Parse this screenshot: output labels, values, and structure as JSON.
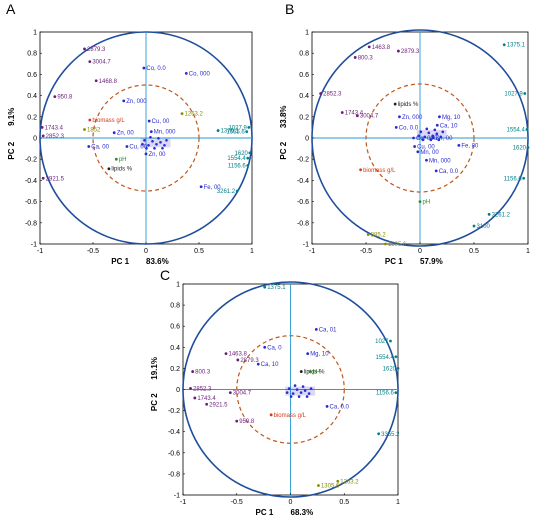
{
  "colors": {
    "outer_circle": "#1f4e9c",
    "inner_circle": "#c0561a",
    "axis_line": "#2a9ad6",
    "wavenumber": "#00808a",
    "wavenumber_purple": "#6a1e7a",
    "metal": "#2a2ad0",
    "biomass": "#d43a1a",
    "lipids": "#222222",
    "ph": "#2e8b2e",
    "olive": "#8a8a00"
  },
  "chart_data": [
    {
      "panel_label": "A",
      "type": "scatter",
      "xlabel": "PC 1",
      "xlabel_value": "83.6%",
      "ylabel": "PC 2",
      "ylabel_value": "9.1%",
      "xlim": [
        -1,
        1
      ],
      "ylim": [
        -1,
        1
      ],
      "x_ticks": [
        "-1",
        "-0.5",
        "0",
        "0.5",
        "1"
      ],
      "y_ticks": [
        "1",
        "0.8",
        "0.6",
        "0.4",
        "0.2",
        "0",
        "-0.2",
        "-0.4",
        "-0.6",
        "-0.8",
        "-1"
      ],
      "points": [
        {
          "label": "2879.3",
          "x": -0.58,
          "y": 0.84,
          "group": "wavenumber_purple"
        },
        {
          "label": "3004.7",
          "x": -0.53,
          "y": 0.72,
          "group": "wavenumber_purple"
        },
        {
          "label": "1468.8",
          "x": -0.47,
          "y": 0.54,
          "group": "wavenumber_purple"
        },
        {
          "label": "950.8",
          "x": -0.86,
          "y": 0.39,
          "group": "wavenumber_purple"
        },
        {
          "label": "1743.4",
          "x": -0.98,
          "y": 0.1,
          "group": "wavenumber_purple"
        },
        {
          "label": "2852.3",
          "x": -0.97,
          "y": 0.02,
          "group": "wavenumber_purple"
        },
        {
          "label": "2921.5",
          "x": -0.97,
          "y": -0.38,
          "group": "wavenumber_purple"
        },
        {
          "label": "biomass g/L",
          "x": -0.53,
          "y": 0.17,
          "group": "biomass"
        },
        {
          "label": "1852",
          "x": -0.58,
          "y": 0.08,
          "group": "olive"
        },
        {
          "label": "pH",
          "x": -0.28,
          "y": -0.2,
          "group": "ph"
        },
        {
          "label": "lipids %",
          "x": -0.35,
          "y": -0.29,
          "group": "lipids"
        },
        {
          "label": "Co, 0.0",
          "x": -0.02,
          "y": 0.66,
          "group": "metal"
        },
        {
          "label": "Co, 000",
          "x": 0.38,
          "y": 0.61,
          "group": "metal"
        },
        {
          "label": "Zn, 000",
          "x": -0.21,
          "y": 0.35,
          "group": "metal"
        },
        {
          "label": "Zn, 00",
          "x": -0.3,
          "y": 0.05,
          "group": "metal"
        },
        {
          "label": "Ca, 00",
          "x": -0.54,
          "y": -0.08,
          "group": "metal"
        },
        {
          "label": "Cu, 00",
          "x": -0.18,
          "y": -0.08,
          "group": "metal"
        },
        {
          "label": "Zn, 00",
          "x": 0.0,
          "y": -0.15,
          "group": "metal"
        },
        {
          "label": "Mn, 000",
          "x": 0.05,
          "y": 0.06,
          "group": "metal"
        },
        {
          "label": "Cu, 00",
          "x": 0.03,
          "y": 0.16,
          "group": "metal"
        },
        {
          "label": "Fe, 00",
          "x": 0.52,
          "y": -0.46,
          "group": "metal"
        },
        {
          "label": "1263.2",
          "x": 0.34,
          "y": 0.23,
          "group": "olive"
        },
        {
          "label": "1375.1",
          "x": 0.68,
          "y": 0.07,
          "group": "wavenumber"
        },
        {
          "label": "1027.9",
          "x": 0.97,
          "y": 0.1,
          "group": "wavenumber"
        },
        {
          "label": "1655.6",
          "x": 0.95,
          "y": 0.06,
          "group": "wavenumber"
        },
        {
          "label": "1620",
          "x": 0.98,
          "y": -0.14,
          "group": "wavenumber"
        },
        {
          "label": "1554.4",
          "x": 0.96,
          "y": -0.19,
          "group": "wavenumber"
        },
        {
          "label": "1156.6",
          "x": 0.96,
          "y": -0.26,
          "group": "wavenumber"
        },
        {
          "label": "3261.2",
          "x": 0.86,
          "y": -0.5,
          "group": "wavenumber"
        }
      ],
      "cluster": {
        "x": 0.08,
        "y": -0.05
      }
    },
    {
      "panel_label": "B",
      "type": "scatter",
      "xlabel": "PC 1",
      "xlabel_value": "57.9%",
      "ylabel": "PC 2",
      "ylabel_value": "33.8%",
      "xlim": [
        -1,
        1
      ],
      "ylim": [
        -1,
        1
      ],
      "x_ticks": [
        "-1",
        "-0.5",
        "0",
        "0.5",
        "1"
      ],
      "y_ticks": [
        "1",
        "0.8",
        "0.6",
        "0.4",
        "0.2",
        "0",
        "-0.2",
        "-0.4",
        "-0.6",
        "-0.8",
        "-1"
      ],
      "points": [
        {
          "label": "1375.1",
          "x": 0.78,
          "y": 0.88,
          "group": "wavenumber"
        },
        {
          "label": "1463.8",
          "x": -0.47,
          "y": 0.86,
          "group": "wavenumber_purple"
        },
        {
          "label": "2879.3",
          "x": -0.2,
          "y": 0.82,
          "group": "wavenumber_purple"
        },
        {
          "label": "800.3",
          "x": -0.6,
          "y": 0.76,
          "group": "wavenumber_purple"
        },
        {
          "label": "2852.3",
          "x": -0.92,
          "y": 0.42,
          "group": "wavenumber_purple"
        },
        {
          "label": "1743.4",
          "x": -0.72,
          "y": 0.24,
          "group": "wavenumber_purple"
        },
        {
          "label": "3004.7",
          "x": -0.58,
          "y": 0.21,
          "group": "wavenumber_purple"
        },
        {
          "label": "lipids %",
          "x": -0.23,
          "y": 0.32,
          "group": "lipids"
        },
        {
          "label": "Zn, 000",
          "x": -0.19,
          "y": 0.2,
          "group": "metal"
        },
        {
          "label": "Co, 0.0",
          "x": -0.22,
          "y": 0.1,
          "group": "metal"
        },
        {
          "label": "Co, 000",
          "x": -0.06,
          "y": 0.0,
          "group": "metal"
        },
        {
          "label": "Mg, 10",
          "x": 0.18,
          "y": 0.2,
          "group": "metal"
        },
        {
          "label": "Ca, 10",
          "x": 0.16,
          "y": 0.12,
          "group": "metal"
        },
        {
          "label": "Zn, 00",
          "x": 0.12,
          "y": 0.0,
          "group": "metal"
        },
        {
          "label": "Cu, 00",
          "x": -0.05,
          "y": -0.08,
          "group": "metal"
        },
        {
          "label": "Mn, 00",
          "x": -0.02,
          "y": -0.13,
          "group": "metal"
        },
        {
          "label": "Mn, 000",
          "x": 0.06,
          "y": -0.21,
          "group": "metal"
        },
        {
          "label": "Fe, 00",
          "x": 0.36,
          "y": -0.07,
          "group": "metal"
        },
        {
          "label": "Ca, 0.0",
          "x": 0.15,
          "y": -0.31,
          "group": "metal"
        },
        {
          "label": "biomass g/L",
          "x": -0.55,
          "y": -0.3,
          "group": "biomass"
        },
        {
          "label": "pH",
          "x": 0.0,
          "y": -0.6,
          "group": "ph"
        },
        {
          "label": "1027.9",
          "x": 0.97,
          "y": 0.42,
          "group": "wavenumber"
        },
        {
          "label": "1554.4",
          "x": 0.99,
          "y": 0.08,
          "group": "wavenumber"
        },
        {
          "label": "1620",
          "x": 1.0,
          "y": -0.09,
          "group": "wavenumber"
        },
        {
          "label": "1156.6",
          "x": 0.96,
          "y": -0.38,
          "group": "wavenumber"
        },
        {
          "label": "3261.2",
          "x": 0.64,
          "y": -0.72,
          "group": "wavenumber"
        },
        {
          "label": "3100",
          "x": 0.5,
          "y": -0.83,
          "group": "wavenumber"
        },
        {
          "label": "885.2",
          "x": -0.48,
          "y": -0.91,
          "group": "olive"
        },
        {
          "label": "1305.6",
          "x": -0.32,
          "y": -1.0,
          "group": "olive"
        }
      ],
      "cluster": {
        "x": 0.1,
        "y": 0.03
      }
    },
    {
      "panel_label": "C",
      "type": "scatter",
      "xlabel": "PC 1",
      "xlabel_value": "68.3%",
      "ylabel": "PC 2",
      "ylabel_value": "19.1%",
      "xlim": [
        -1,
        1
      ],
      "ylim": [
        -1,
        1
      ],
      "x_ticks": [
        "-1",
        "-0.5",
        "0",
        "0.5",
        "1"
      ],
      "y_ticks": [
        "1",
        "0.8",
        "0.6",
        "0.4",
        "0.2",
        "0",
        "-0.2",
        "-0.4",
        "-0.6",
        "-0.8",
        "-1"
      ],
      "points": [
        {
          "label": "1375.1",
          "x": -0.24,
          "y": 0.97,
          "group": "wavenumber"
        },
        {
          "label": "Ca, 01",
          "x": 0.24,
          "y": 0.57,
          "group": "metal"
        },
        {
          "label": "Ca, 0",
          "x": -0.24,
          "y": 0.4,
          "group": "metal"
        },
        {
          "label": "Mg, 10",
          "x": 0.16,
          "y": 0.34,
          "group": "metal"
        },
        {
          "label": "Ca, 10",
          "x": -0.3,
          "y": 0.24,
          "group": "metal"
        },
        {
          "label": "lipids %",
          "x": 0.1,
          "y": 0.17,
          "group": "lipids"
        },
        {
          "label": "pH",
          "x": 0.18,
          "y": 0.17,
          "group": "ph"
        },
        {
          "label": "1463.8",
          "x": -0.6,
          "y": 0.34,
          "group": "wavenumber_purple"
        },
        {
          "label": "2879.3",
          "x": -0.49,
          "y": 0.28,
          "group": "wavenumber_purple"
        },
        {
          "label": "800.3",
          "x": -0.91,
          "y": 0.17,
          "group": "wavenumber_purple"
        },
        {
          "label": "2852.3",
          "x": -0.93,
          "y": 0.01,
          "group": "wavenumber_purple"
        },
        {
          "label": "1743.4",
          "x": -0.89,
          "y": -0.08,
          "group": "wavenumber_purple"
        },
        {
          "label": "3004.7",
          "x": -0.56,
          "y": -0.03,
          "group": "wavenumber_purple"
        },
        {
          "label": "2921.5",
          "x": -0.78,
          "y": -0.14,
          "group": "wavenumber_purple"
        },
        {
          "label": "950.8",
          "x": -0.5,
          "y": -0.3,
          "group": "wavenumber_purple"
        },
        {
          "label": "biomass g/L",
          "x": -0.18,
          "y": -0.24,
          "group": "biomass"
        },
        {
          "label": "Ca, 0.0",
          "x": 0.34,
          "y": -0.16,
          "group": "metal"
        },
        {
          "label": "1027",
          "x": 0.93,
          "y": 0.46,
          "group": "wavenumber"
        },
        {
          "label": "1554.4",
          "x": 0.98,
          "y": 0.31,
          "group": "wavenumber"
        },
        {
          "label": "1620",
          "x": 1.0,
          "y": 0.2,
          "group": "wavenumber"
        },
        {
          "label": "1156.6",
          "x": 0.98,
          "y": -0.03,
          "group": "wavenumber"
        },
        {
          "label": "3355.2",
          "x": 0.82,
          "y": -0.42,
          "group": "wavenumber"
        },
        {
          "label": "1263.2",
          "x": 0.44,
          "y": -0.87,
          "group": "olive"
        },
        {
          "label": "1305.6",
          "x": 0.26,
          "y": -0.91,
          "group": "olive"
        }
      ],
      "cluster": {
        "x": 0.08,
        "y": -0.02
      }
    }
  ]
}
